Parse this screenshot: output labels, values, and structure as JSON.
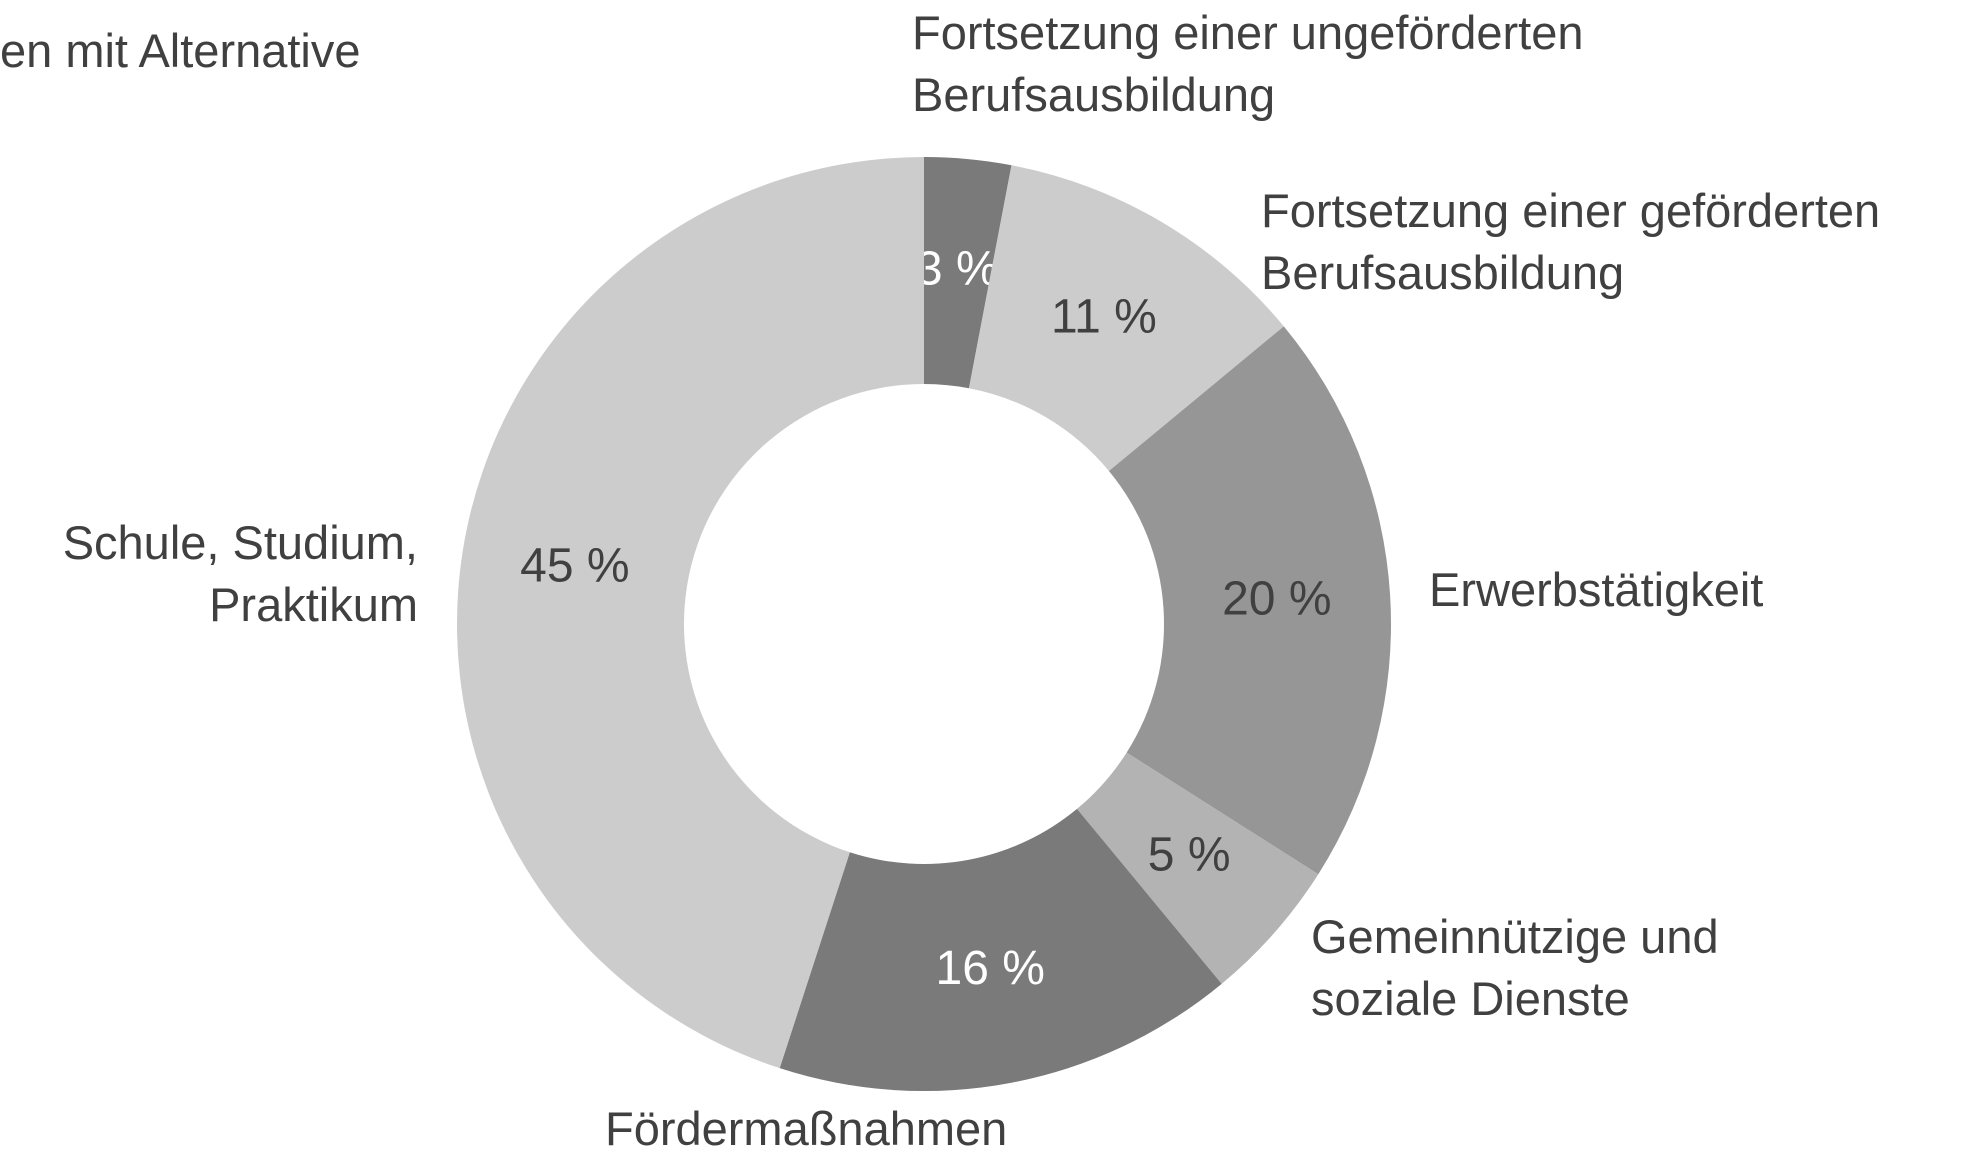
{
  "chart_data": {
    "type": "donut",
    "title": "en mit Alternative",
    "categories": [
      "Fortsetzung einer ungeförderten Berufsausbildung",
      "Fortsetzung einer geförderten Berufsausbildung",
      "Erwerbstätigkeit",
      "Gemeinnützige und soziale Dienste",
      "Fördermaßnahmen",
      "Schule, Studium, Praktikum"
    ],
    "values": [
      3,
      11,
      20,
      5,
      16,
      45
    ],
    "value_labels": [
      "3 %",
      "11 %",
      "20 %",
      "5 %",
      "16 %",
      "45 %"
    ],
    "colors": [
      "#7a7a7a",
      "#cccccc",
      "#969696",
      "#b3b3b3",
      "#7a7a7a",
      "#cccccc"
    ]
  }
}
